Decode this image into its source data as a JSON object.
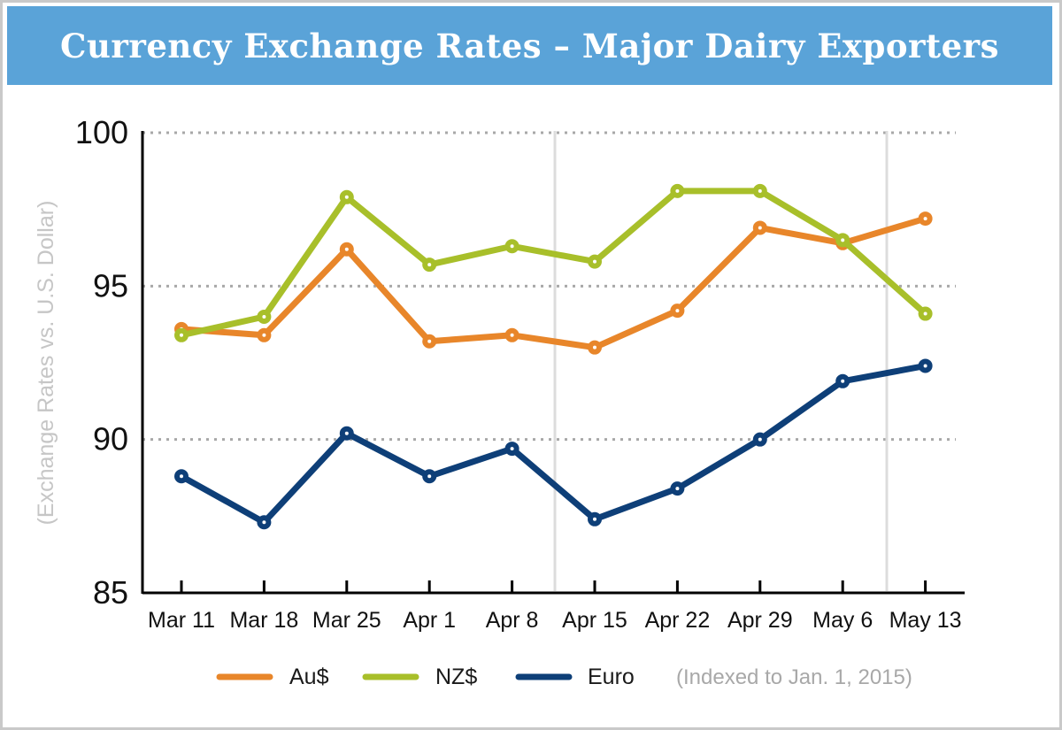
{
  "title": "Currency Exchange Rates – Major Dairy Exporters",
  "colors": {
    "title_bar": "#5aa3d8",
    "au": "#e8862a",
    "nz": "#a8bf2a",
    "euro": "#0e3f78",
    "grid": "#a8a8a8"
  },
  "chart_data": {
    "type": "line",
    "categories": [
      "Mar 11",
      "Mar 18",
      "Mar 25",
      "Apr 1",
      "Apr 8",
      "Apr 15",
      "Apr 22",
      "Apr 29",
      "May 6",
      "May 13"
    ],
    "series": [
      {
        "name": "Au$",
        "color": "#e8862a",
        "values": [
          93.6,
          93.4,
          96.2,
          93.2,
          93.4,
          93.0,
          94.2,
          96.9,
          96.4,
          97.2
        ]
      },
      {
        "name": "NZ$",
        "color": "#a8bf2a",
        "values": [
          93.4,
          94.0,
          97.9,
          95.7,
          96.3,
          95.8,
          98.1,
          98.1,
          96.5,
          94.1
        ]
      },
      {
        "name": "Euro",
        "color": "#0e3f78",
        "values": [
          88.8,
          87.3,
          90.2,
          88.8,
          89.7,
          87.4,
          88.4,
          90.0,
          91.9,
          92.4
        ]
      }
    ],
    "ylabel": "(Exchange Rates vs. U.S. Dollar)",
    "xlabel": "",
    "ylim": [
      85,
      100
    ],
    "yticks": [
      "100",
      "95",
      "90",
      "85"
    ],
    "ytick_values": [
      100,
      95,
      90,
      85
    ],
    "grid": "dotted horizontal at 90, 95, 100",
    "legend": {
      "position": "bottom",
      "note": "(Indexed to Jan. 1, 2015)"
    }
  }
}
